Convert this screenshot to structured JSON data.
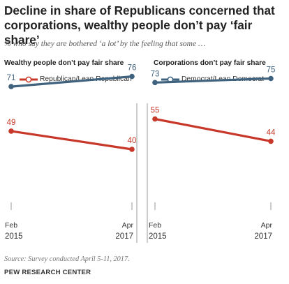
{
  "title": "Decline in share of Republicans concerned that corporations, wealthy people don’t pay ‘fair share’",
  "subtitle": "% who say they are bothered ‘a lot’ by the feeling that some …",
  "colors": {
    "republican": "#c8382a",
    "democrat": "#3f627f",
    "axis": "#9a9a9a"
  },
  "legend": [
    {
      "label": "Republican/Lean Republican",
      "color": "#c8382a"
    },
    {
      "label": "Democrat/Lean Democrat",
      "color": "#3f627f"
    }
  ],
  "chart_data": [
    {
      "type": "line",
      "title": "Wealthy people don’t pay fair share",
      "x": [
        {
          "month": "Feb",
          "year": "2015"
        },
        {
          "month": "Apr",
          "year": "2017"
        }
      ],
      "ylim": [
        0,
        100
      ],
      "grid": false,
      "series": [
        {
          "name": "Democrat/Lean Democrat",
          "color": "#3f627f",
          "values": [
            71,
            76
          ]
        },
        {
          "name": "Republican/Lean Republican",
          "color": "#c8382a",
          "values": [
            49,
            40
          ]
        }
      ]
    },
    {
      "type": "line",
      "title": "Corporations don’t pay fair share",
      "x": [
        {
          "month": "Feb",
          "year": "2015"
        },
        {
          "month": "Apr",
          "year": "2017"
        }
      ],
      "ylim": [
        0,
        100
      ],
      "grid": false,
      "series": [
        {
          "name": "Democrat/Lean Democrat",
          "color": "#3f627f",
          "values": [
            73,
            75
          ]
        },
        {
          "name": "Republican/Lean Republican",
          "color": "#c8382a",
          "values": [
            55,
            44
          ]
        }
      ]
    }
  ],
  "footer": {
    "source": "Source: Survey conducted April 5-11, 2017.",
    "org": "PEW RESEARCH CENTER"
  }
}
